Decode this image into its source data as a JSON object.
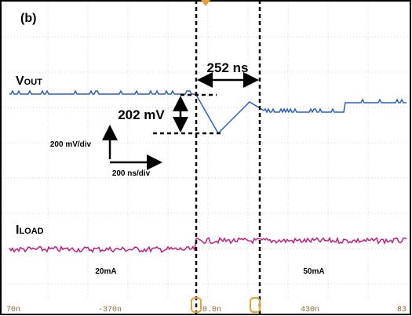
{
  "panel_label": "(b)",
  "signals": [
    {
      "name": "V",
      "subscript": "OUT"
    },
    {
      "name": "I",
      "subscript": "LOAD"
    }
  ],
  "annotations": {
    "delay": "252 ns",
    "dip": "202 mV",
    "vscale": "200 mV/div",
    "hscale": "200 ns/div",
    "current_before": "20mA",
    "current_after": "50mA"
  },
  "time_labels": [
    "70n",
    "-370n",
    "0.0n",
    "430n",
    "83"
  ]
}
